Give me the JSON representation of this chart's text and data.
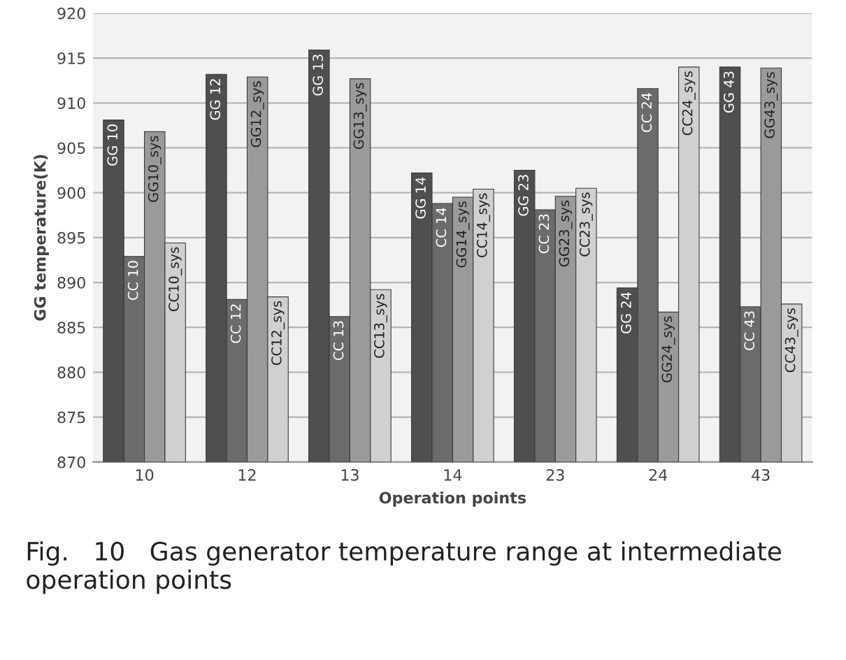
{
  "chart_data": {
    "type": "bar",
    "categories": [
      "10",
      "12",
      "13",
      "14",
      "23",
      "24",
      "43"
    ],
    "xlabel": "Operation points",
    "ylabel": "GG temperature(K)",
    "ylim": [
      870,
      920
    ],
    "yticks": [
      870,
      875,
      880,
      885,
      890,
      895,
      900,
      905,
      910,
      915,
      920
    ],
    "grid": "y",
    "series": [
      {
        "color": "#4f4f4f",
        "values": [
          908.1,
          913.2,
          915.9,
          902.2,
          902.5,
          889.4,
          914.0
        ],
        "value_labels": [
          "GG 10",
          "GG 12",
          "GG 13",
          "GG 14",
          "GG 23",
          "GG 24",
          "GG 43"
        ]
      },
      {
        "color": "#6b6b6b",
        "values": [
          892.9,
          888.1,
          886.2,
          898.8,
          898.1,
          911.6,
          887.3
        ],
        "value_labels": [
          "CC 10",
          "CC 12",
          "CC 13",
          "CC 14",
          "CC 23",
          "CC 24",
          "CC 43"
        ]
      },
      {
        "color": "#9a9a9a",
        "values": [
          906.8,
          912.9,
          912.7,
          899.5,
          899.6,
          886.7,
          913.9
        ],
        "value_labels": [
          "GG10_sys",
          "GG12_sys",
          "GG13_sys",
          "GG14_sys",
          "GG23_sys",
          "GG24_sys",
          "GG43_sys"
        ]
      },
      {
        "color": "#d0d0d0",
        "values": [
          894.4,
          888.4,
          889.2,
          900.4,
          900.5,
          914.0,
          887.6
        ],
        "value_labels": [
          "CC10_sys",
          "CC12_sys",
          "CC13_sys",
          "CC14_sys",
          "CC23_sys",
          "CC24_sys",
          "CC43_sys"
        ]
      }
    ],
    "annotations": [
      "Fig.   10   Gas generator temperature range at intermediate operation points"
    ]
  }
}
